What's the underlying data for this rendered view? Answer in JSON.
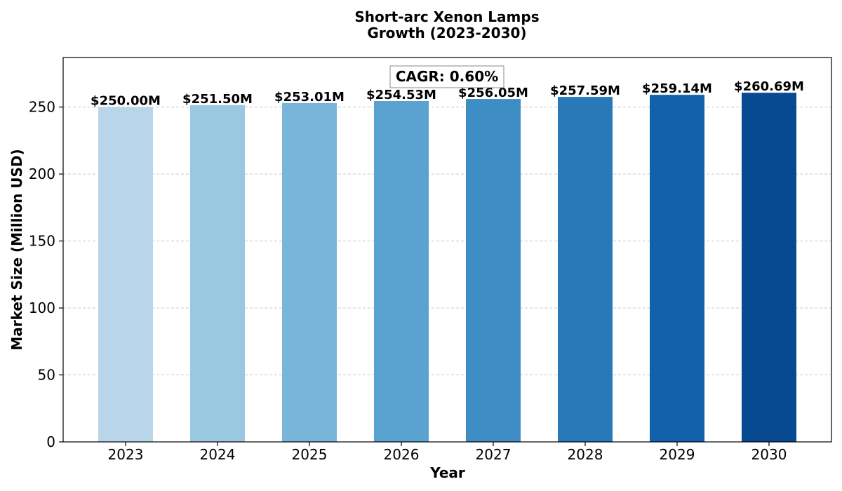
{
  "chart_data": {
    "type": "bar",
    "title_lines": [
      "Short-arc Xenon Lamps",
      "Growth (2023-2030)"
    ],
    "xlabel": "Year",
    "ylabel": "Market Size (Million USD)",
    "categories": [
      "2023",
      "2024",
      "2025",
      "2026",
      "2027",
      "2028",
      "2029",
      "2030"
    ],
    "values": [
      250.0,
      251.5,
      253.01,
      254.53,
      256.05,
      257.59,
      259.14,
      260.69
    ],
    "value_labels": [
      "$250.00M",
      "$251.50M",
      "$253.01M",
      "$254.53M",
      "$256.05M",
      "$257.59M",
      "$259.14M",
      "$260.69M"
    ],
    "bar_colors": [
      "#b9d5ea",
      "#9ac8e0",
      "#79b5d9",
      "#5aa2cf",
      "#3f8dc5",
      "#2979b9",
      "#1361aa",
      "#084a92"
    ],
    "ylim": [
      0,
      287
    ],
    "yticks": [
      0,
      50,
      100,
      150,
      200,
      250
    ],
    "grid": "y-dashed",
    "annotation": "CAGR: 0.60%"
  }
}
